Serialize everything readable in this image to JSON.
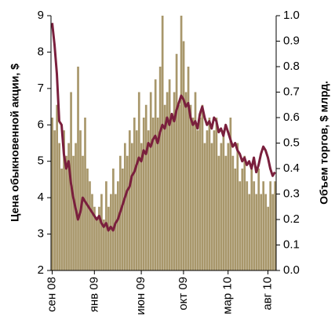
{
  "chart_data": {
    "type": "bar-line",
    "y_label": "Цена обыкновенной акции, $",
    "y2_label": "Объем торгов, $ млрд.",
    "categories": [
      "сен 08",
      null,
      null,
      null,
      null,
      null,
      null,
      null,
      null,
      null,
      null,
      null,
      null,
      null,
      null,
      null,
      null,
      null,
      "янв 09",
      null,
      null,
      null,
      null,
      null,
      null,
      null,
      null,
      null,
      null,
      null,
      null,
      null,
      null,
      null,
      null,
      null,
      null,
      null,
      "июн 09",
      null,
      null,
      null,
      null,
      null,
      null,
      null,
      null,
      null,
      null,
      null,
      null,
      null,
      null,
      null,
      null,
      null,
      "окт 09",
      null,
      null,
      null,
      null,
      null,
      null,
      null,
      null,
      null,
      null,
      null,
      null,
      null,
      null,
      null,
      null,
      null,
      null,
      "мар 10",
      null,
      null,
      null,
      null,
      null,
      null,
      null,
      null,
      null,
      null,
      null,
      null,
      null,
      null,
      null,
      null,
      "авг 10",
      null,
      null,
      null
    ],
    "series": [
      {
        "type": "bar",
        "axis": "y2",
        "color": "#a8976b",
        "values": [
          0.6,
          0.55,
          0.65,
          0.5,
          0.4,
          0.55,
          0.45,
          0.5,
          0.7,
          0.45,
          0.5,
          0.8,
          0.55,
          0.45,
          0.6,
          0.4,
          0.35,
          0.3,
          0.25,
          0.2,
          0.25,
          0.3,
          0.2,
          0.35,
          0.25,
          0.3,
          0.4,
          0.3,
          0.35,
          0.45,
          0.4,
          0.5,
          0.45,
          0.55,
          0.5,
          0.6,
          0.55,
          0.7,
          0.5,
          0.6,
          0.65,
          0.55,
          0.7,
          0.6,
          0.75,
          0.6,
          0.8,
          1.0,
          0.65,
          0.7,
          0.75,
          0.6,
          0.7,
          0.85,
          0.65,
          1.0,
          0.9,
          0.7,
          0.8,
          0.65,
          0.6,
          0.7,
          0.55,
          0.6,
          0.65,
          0.5,
          0.55,
          0.6,
          0.5,
          0.55,
          0.6,
          0.45,
          0.5,
          0.55,
          0.45,
          0.5,
          0.6,
          0.45,
          0.4,
          0.5,
          0.35,
          0.4,
          0.45,
          0.35,
          0.3,
          0.4,
          0.35,
          0.3,
          0.4,
          0.3,
          0.35,
          0.3,
          0.25,
          0.35,
          0.3,
          0.35
        ]
      },
      {
        "type": "line",
        "axis": "y",
        "color": "#7a1f3d",
        "values": [
          8.8,
          8.2,
          7.4,
          6.1,
          6.0,
          5.2,
          4.8,
          5.0,
          4.4,
          4.0,
          3.7,
          3.4,
          3.6,
          4.0,
          3.9,
          3.8,
          3.7,
          3.6,
          3.5,
          3.4,
          3.5,
          3.3,
          3.2,
          3.3,
          3.1,
          3.2,
          3.1,
          3.3,
          3.4,
          3.6,
          3.8,
          4.0,
          4.2,
          4.3,
          4.6,
          4.7,
          4.9,
          5.1,
          5.0,
          5.3,
          5.2,
          5.5,
          5.4,
          5.6,
          5.7,
          5.5,
          5.8,
          6.0,
          5.9,
          6.2,
          6.0,
          6.3,
          6.1,
          6.4,
          6.6,
          6.8,
          6.7,
          6.5,
          6.6,
          6.2,
          6.0,
          6.1,
          5.9,
          6.3,
          6.5,
          6.2,
          6.0,
          6.1,
          5.9,
          6.2,
          6.1,
          5.8,
          5.9,
          5.7,
          6.0,
          5.8,
          5.6,
          5.4,
          5.5,
          5.3,
          5.2,
          5.0,
          5.1,
          4.9,
          5.0,
          4.8,
          5.1,
          4.7,
          4.9,
          5.2,
          5.4,
          5.3,
          5.1,
          4.8,
          4.6,
          4.7
        ]
      }
    ],
    "ylim": [
      2,
      9
    ],
    "yticks": [
      2,
      3,
      4,
      5,
      6,
      7,
      8,
      9
    ],
    "y2lim": [
      0,
      1
    ],
    "y2ticks": [
      {
        "value": 0,
        "label": "0.0"
      },
      0.1,
      0.2,
      0.3,
      0.4,
      0.5,
      0.6,
      0.7,
      0.8,
      0.9,
      {
        "value": 1,
        "label": "1.0"
      }
    ]
  }
}
